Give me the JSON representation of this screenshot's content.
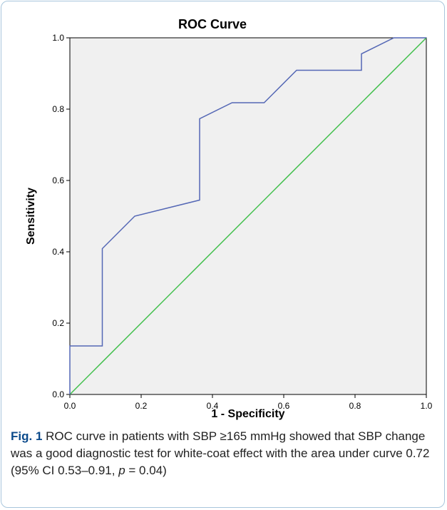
{
  "chart_data": {
    "type": "line",
    "title": "ROC Curve",
    "xlabel": "1 - Specificity",
    "ylabel": "Sensitivity",
    "xlim": [
      0,
      1
    ],
    "ylim": [
      0,
      1
    ],
    "xticks": [
      "0.0",
      "0.2",
      "0.4",
      "0.6",
      "0.8",
      "1.0"
    ],
    "yticks": [
      "0.0",
      "0.2",
      "0.4",
      "0.6",
      "0.8",
      "1.0"
    ],
    "grid": false,
    "series": [
      {
        "color": "#5467b5",
        "x": [
          0,
          0,
          0.091,
          0.091,
          0.182,
          0.364,
          0.364,
          0.455,
          0.545,
          0.636,
          0.818,
          0.818,
          0.909,
          1.0
        ],
        "y": [
          0,
          0.136,
          0.136,
          0.409,
          0.5,
          0.545,
          0.773,
          0.818,
          0.818,
          0.909,
          0.909,
          0.955,
          1.0,
          1.0
        ]
      },
      {
        "color": "#3fbf4a",
        "x": [
          0,
          1
        ],
        "y": [
          0,
          1
        ]
      }
    ],
    "plot_background": "#f0f0f0"
  },
  "caption": {
    "fig_label": "Fig. 1",
    "text_before_p": "ROC curve in patients with SBP ≥165 mmHg showed that SBP change was a good diagnostic test for white-coat effect with the area under curve 0.72 (95% CI 0.53–0.91, ",
    "p_symbol": "p",
    "text_after_p": " = 0.04)"
  },
  "colors": {
    "frame_border": "#a8c6dc",
    "fig_label": "#0b4a8b"
  }
}
